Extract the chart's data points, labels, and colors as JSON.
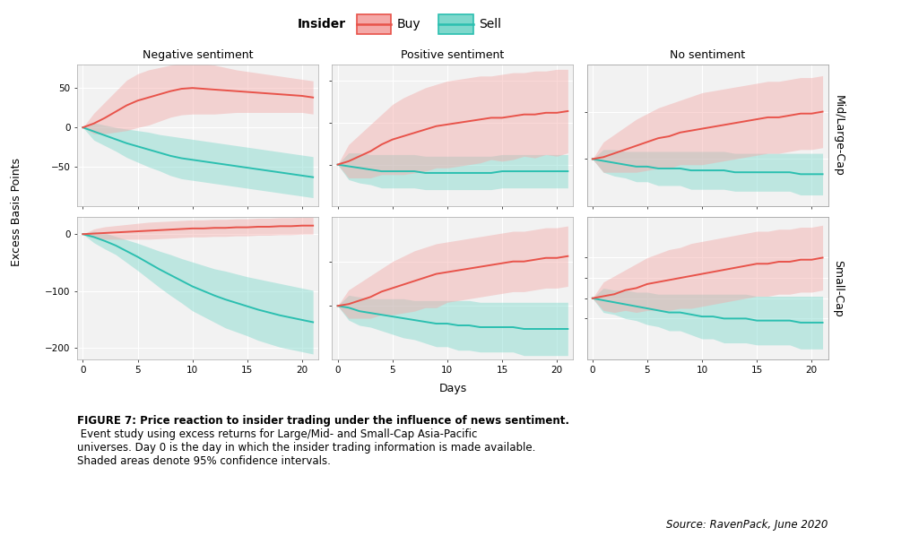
{
  "days": [
    0,
    1,
    2,
    3,
    4,
    5,
    6,
    7,
    8,
    9,
    10,
    11,
    12,
    13,
    14,
    15,
    16,
    17,
    18,
    19,
    20,
    21
  ],
  "panels": {
    "neg_large": {
      "buy_mean": [
        0,
        5,
        12,
        20,
        28,
        34,
        38,
        42,
        46,
        49,
        50,
        49,
        48,
        47,
        46,
        45,
        44,
        43,
        42,
        41,
        40,
        38
      ],
      "buy_upper": [
        0,
        18,
        32,
        46,
        60,
        68,
        73,
        76,
        79,
        82,
        83,
        81,
        79,
        76,
        73,
        71,
        69,
        67,
        65,
        63,
        61,
        59
      ],
      "buy_lower": [
        0,
        -8,
        -8,
        -6,
        -4,
        0,
        3,
        8,
        13,
        16,
        17,
        17,
        17,
        18,
        19,
        19,
        19,
        19,
        19,
        19,
        19,
        17
      ],
      "sell_mean": [
        0,
        -5,
        -10,
        -15,
        -20,
        -24,
        -28,
        -32,
        -36,
        -39,
        -41,
        -43,
        -45,
        -47,
        -49,
        -51,
        -53,
        -55,
        -57,
        -59,
        -61,
        -63
      ],
      "sell_upper": [
        0,
        6,
        3,
        0,
        -2,
        -4,
        -6,
        -9,
        -11,
        -13,
        -15,
        -17,
        -19,
        -21,
        -23,
        -25,
        -27,
        -29,
        -31,
        -33,
        -35,
        -37
      ],
      "sell_lower": [
        0,
        -16,
        -23,
        -30,
        -38,
        -44,
        -50,
        -55,
        -61,
        -65,
        -67,
        -69,
        -71,
        -73,
        -75,
        -77,
        -79,
        -81,
        -83,
        -85,
        -87,
        -89
      ],
      "ylim": [
        -100,
        80
      ],
      "yticks": [
        -50,
        0,
        50
      ]
    },
    "pos_large": {
      "buy_mean": [
        0,
        2,
        5,
        8,
        12,
        15,
        17,
        19,
        21,
        23,
        24,
        25,
        26,
        27,
        28,
        28,
        29,
        30,
        30,
        31,
        31,
        32
      ],
      "buy_upper": [
        0,
        12,
        18,
        24,
        30,
        36,
        40,
        43,
        46,
        48,
        50,
        51,
        52,
        53,
        53,
        54,
        55,
        55,
        56,
        56,
        57,
        57
      ],
      "buy_lower": [
        0,
        -8,
        -8,
        -8,
        -6,
        -6,
        -6,
        -5,
        -4,
        -2,
        -2,
        -1,
        0,
        1,
        3,
        2,
        3,
        5,
        4,
        6,
        5,
        7
      ],
      "sell_mean": [
        0,
        -1,
        -2,
        -3,
        -4,
        -4,
        -4,
        -4,
        -5,
        -5,
        -5,
        -5,
        -5,
        -5,
        -5,
        -4,
        -4,
        -4,
        -4,
        -4,
        -4,
        -4
      ],
      "sell_upper": [
        0,
        7,
        7,
        6,
        6,
        6,
        6,
        6,
        5,
        5,
        5,
        5,
        5,
        5,
        5,
        6,
        6,
        6,
        6,
        6,
        6,
        6
      ],
      "sell_lower": [
        0,
        -9,
        -11,
        -12,
        -14,
        -14,
        -14,
        -14,
        -15,
        -15,
        -15,
        -15,
        -15,
        -15,
        -15,
        -14,
        -14,
        -14,
        -14,
        -14,
        -14,
        -14
      ],
      "ylim": [
        -25,
        60
      ],
      "yticks": [
        0,
        25,
        50
      ]
    },
    "no_large": {
      "buy_mean": [
        0,
        1,
        3,
        5,
        7,
        9,
        11,
        12,
        14,
        15,
        16,
        17,
        18,
        19,
        20,
        21,
        22,
        22,
        23,
        24,
        24,
        25
      ],
      "buy_upper": [
        0,
        9,
        13,
        17,
        21,
        24,
        27,
        29,
        31,
        33,
        35,
        36,
        37,
        38,
        39,
        40,
        41,
        41,
        42,
        43,
        43,
        44
      ],
      "buy_lower": [
        0,
        -7,
        -7,
        -7,
        -7,
        -6,
        -5,
        -5,
        -3,
        -3,
        -3,
        -2,
        -1,
        0,
        1,
        2,
        3,
        3,
        4,
        5,
        5,
        6
      ],
      "sell_mean": [
        0,
        -1,
        -2,
        -3,
        -4,
        -4,
        -5,
        -5,
        -5,
        -6,
        -6,
        -6,
        -6,
        -7,
        -7,
        -7,
        -7,
        -7,
        -7,
        -8,
        -8,
        -8
      ],
      "sell_upper": [
        0,
        5,
        5,
        4,
        4,
        4,
        4,
        4,
        4,
        4,
        4,
        4,
        4,
        3,
        3,
        3,
        3,
        3,
        3,
        3,
        3,
        3
      ],
      "sell_lower": [
        0,
        -7,
        -9,
        -10,
        -12,
        -12,
        -14,
        -14,
        -14,
        -16,
        -16,
        -16,
        -16,
        -17,
        -17,
        -17,
        -17,
        -17,
        -17,
        -19,
        -19,
        -19
      ],
      "ylim": [
        -25,
        50
      ],
      "yticks": [
        0,
        25
      ]
    },
    "neg_small": {
      "buy_mean": [
        0,
        1,
        2,
        3,
        4,
        5,
        6,
        7,
        8,
        9,
        10,
        10,
        11,
        11,
        12,
        12,
        13,
        13,
        14,
        14,
        15,
        15
      ],
      "buy_upper": [
        0,
        9,
        13,
        15,
        17,
        19,
        21,
        22,
        23,
        24,
        25,
        25,
        26,
        26,
        27,
        27,
        28,
        28,
        29,
        29,
        30,
        30
      ],
      "buy_lower": [
        0,
        -7,
        -9,
        -9,
        -9,
        -9,
        -9,
        -8,
        -7,
        -6,
        -5,
        -5,
        -4,
        -4,
        -3,
        -3,
        -2,
        -2,
        -1,
        -1,
        0,
        0
      ],
      "sell_mean": [
        0,
        -5,
        -12,
        -20,
        -30,
        -40,
        -51,
        -62,
        -72,
        -82,
        -92,
        -100,
        -108,
        -115,
        -121,
        -127,
        -133,
        -138,
        -143,
        -147,
        -151,
        -155
      ],
      "sell_upper": [
        0,
        5,
        2,
        -4,
        -10,
        -16,
        -23,
        -30,
        -36,
        -43,
        -49,
        -55,
        -61,
        -65,
        -70,
        -75,
        -79,
        -83,
        -87,
        -91,
        -95,
        -99
      ],
      "sell_lower": [
        0,
        -15,
        -26,
        -36,
        -50,
        -64,
        -79,
        -94,
        -108,
        -121,
        -135,
        -145,
        -155,
        -165,
        -172,
        -179,
        -187,
        -193,
        -199,
        -203,
        -207,
        -211
      ],
      "ylim": [
        -220,
        30
      ],
      "yticks": [
        -200,
        -100,
        0
      ]
    },
    "pos_small": {
      "buy_mean": [
        0,
        1,
        3,
        5,
        8,
        10,
        12,
        14,
        16,
        18,
        19,
        20,
        21,
        22,
        23,
        24,
        25,
        25,
        26,
        27,
        27,
        28
      ],
      "buy_upper": [
        0,
        9,
        13,
        17,
        21,
        25,
        28,
        31,
        33,
        35,
        36,
        37,
        38,
        39,
        40,
        41,
        42,
        42,
        43,
        44,
        44,
        45
      ],
      "buy_lower": [
        0,
        -7,
        -7,
        -7,
        -5,
        -5,
        -4,
        -3,
        -1,
        -1,
        2,
        3,
        4,
        5,
        6,
        7,
        8,
        8,
        9,
        10,
        10,
        11
      ],
      "sell_mean": [
        0,
        -1,
        -3,
        -4,
        -5,
        -6,
        -7,
        -8,
        -9,
        -10,
        -10,
        -11,
        -11,
        -12,
        -12,
        -12,
        -12,
        -13,
        -13,
        -13,
        -13,
        -13
      ],
      "sell_upper": [
        0,
        6,
        5,
        4,
        4,
        4,
        4,
        3,
        3,
        3,
        3,
        3,
        3,
        2,
        2,
        2,
        2,
        2,
        2,
        2,
        2,
        2
      ],
      "sell_lower": [
        0,
        -8,
        -11,
        -12,
        -14,
        -16,
        -18,
        -19,
        -21,
        -23,
        -23,
        -25,
        -25,
        -26,
        -26,
        -26,
        -26,
        -28,
        -28,
        -28,
        -28,
        -28
      ],
      "ylim": [
        -30,
        50
      ],
      "yticks": [
        0,
        25
      ]
    },
    "no_small": {
      "buy_mean": [
        0,
        1,
        2,
        4,
        5,
        7,
        8,
        9,
        10,
        11,
        12,
        13,
        14,
        15,
        16,
        17,
        17,
        18,
        18,
        19,
        19,
        20
      ],
      "buy_upper": [
        0,
        8,
        11,
        14,
        17,
        20,
        22,
        24,
        25,
        27,
        28,
        29,
        30,
        31,
        32,
        33,
        33,
        34,
        34,
        35,
        35,
        36
      ],
      "buy_lower": [
        0,
        -6,
        -7,
        -6,
        -7,
        -6,
        -6,
        -6,
        -5,
        -5,
        -4,
        -3,
        -2,
        -1,
        0,
        1,
        1,
        2,
        2,
        3,
        3,
        4
      ],
      "sell_mean": [
        0,
        -1,
        -2,
        -3,
        -4,
        -5,
        -6,
        -7,
        -7,
        -8,
        -9,
        -9,
        -10,
        -10,
        -10,
        -11,
        -11,
        -11,
        -11,
        -12,
        -12,
        -12
      ],
      "sell_upper": [
        0,
        5,
        4,
        4,
        3,
        3,
        2,
        2,
        2,
        2,
        2,
        2,
        2,
        2,
        2,
        1,
        1,
        1,
        1,
        1,
        1,
        1
      ],
      "sell_lower": [
        0,
        -7,
        -8,
        -10,
        -11,
        -13,
        -14,
        -16,
        -16,
        -18,
        -20,
        -20,
        -22,
        -22,
        -22,
        -23,
        -23,
        -23,
        -23,
        -25,
        -25,
        -25
      ],
      "ylim": [
        -30,
        40
      ],
      "yticks": [
        -10,
        0,
        10,
        20
      ]
    }
  },
  "col_titles": [
    "Negative sentiment",
    "Positive sentiment",
    "No sentiment"
  ],
  "row_titles": [
    "Mid/Large-Cap",
    "Small-Cap"
  ],
  "buy_color": "#F4A9A8",
  "sell_color": "#7ED8CC",
  "buy_line_color": "#E8534A",
  "sell_line_color": "#2BBFB0",
  "buy_fill_alpha": 0.45,
  "sell_fill_alpha": 0.45,
  "ylabel": "Excess Basis Points",
  "xlabel": "Days",
  "bg_color": "#F2F2F2",
  "source_text": "Source: RavenPack, June 2020"
}
